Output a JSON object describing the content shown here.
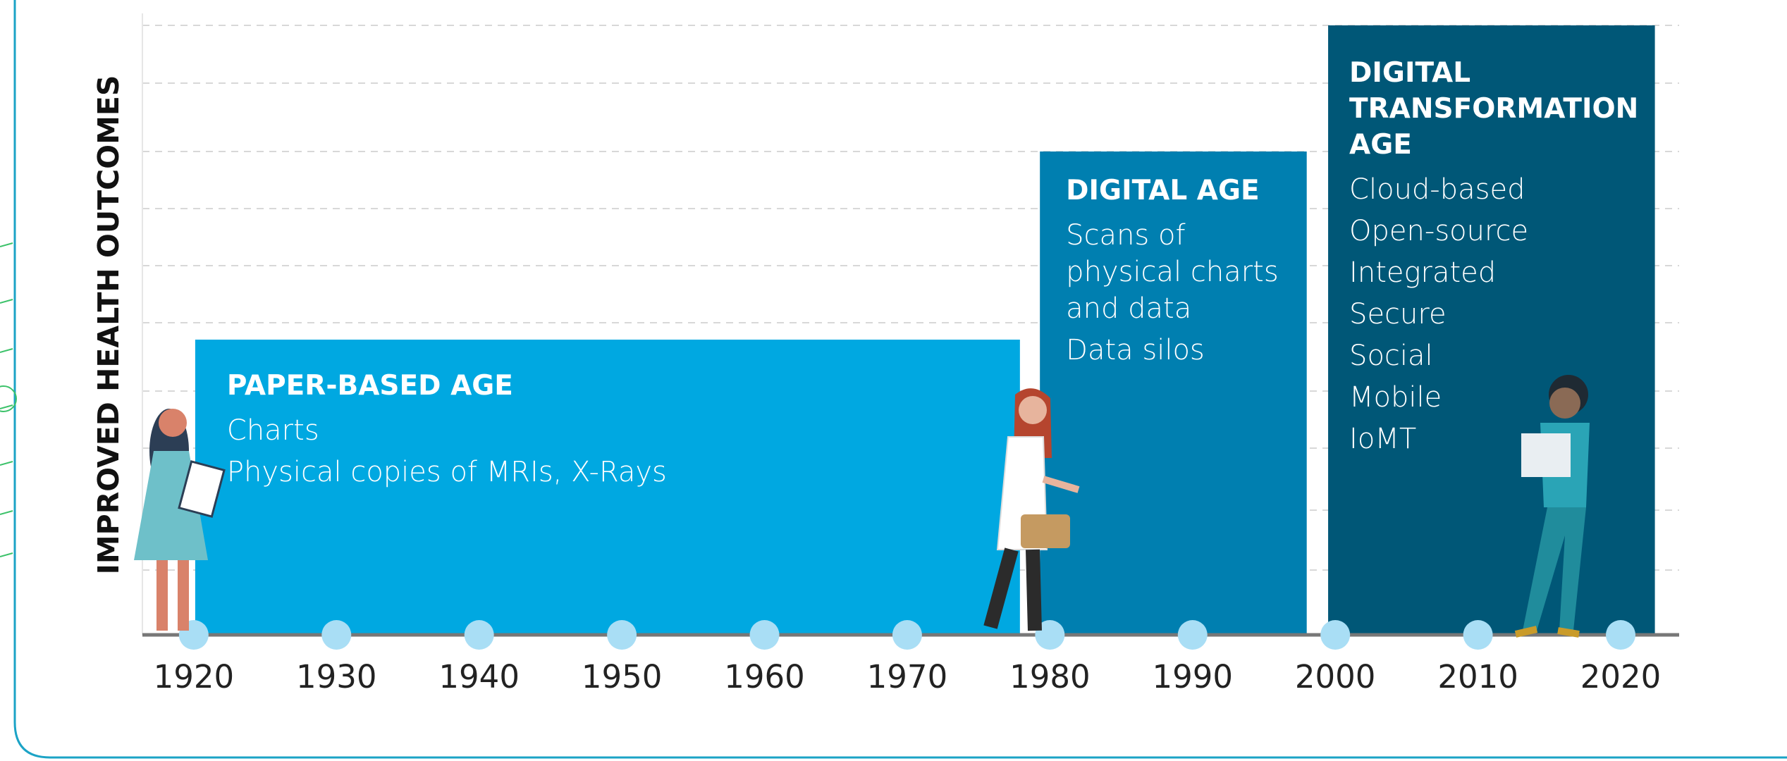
{
  "y_axis_label": "IMPROVED HEALTH OUTCOMES",
  "chart_data": {
    "type": "timeline",
    "xlim": [
      1916.4,
      2024.1
    ],
    "xticks": [
      1920,
      1930,
      1940,
      1950,
      1960,
      1970,
      1980,
      1990,
      2000,
      2010,
      2020
    ],
    "eras": [
      {
        "title": "PAPER-BASED AGE",
        "items": [
          "Charts",
          "Physical copies of MRIs, X-Rays"
        ],
        "start": 1920.1,
        "end": 1977.9,
        "color": "#00a8e1"
      },
      {
        "title": "DIGITAL AGE",
        "items": [
          "Scans of physical charts and data",
          "Data silos"
        ],
        "start": 1979.3,
        "end": 1998.0,
        "color": "#007fb0"
      },
      {
        "title": "DIGITAL TRANSFORMATION AGE",
        "items": [
          "Cloud-based",
          "Open-source",
          "Integrated",
          "Secure",
          "Social",
          "Mobile",
          "IoMT"
        ],
        "start": 1999.5,
        "end": 2022.4,
        "color": "#005777"
      }
    ]
  }
}
